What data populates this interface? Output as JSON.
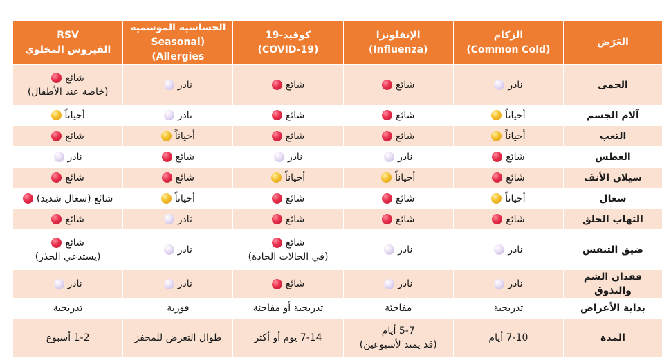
{
  "header": {
    "symptom": "العَرَض",
    "cold": [
      "الزكام",
      "(Common Cold)"
    ],
    "flu": [
      "الإنفلونزا",
      "(Influenza)"
    ],
    "covid": [
      "كوفيد-19",
      "(COVID-19)"
    ],
    "allergy": [
      "الحساسية الموسمية",
      "(Seasonal Allergies)"
    ],
    "rsv": [
      "RSV",
      "الفيروس المخلوي"
    ]
  },
  "rows": [
    {
      "symptom": "الحمى",
      "cells": [
        {
          "dot": "purple",
          "text": "نادر"
        },
        {
          "dot": "red",
          "text": "شائع"
        },
        {
          "dot": "red",
          "text": "شائع"
        },
        {
          "dot": "purple",
          "text": "نادر"
        },
        {
          "dot": "red",
          "text": "شائع",
          "note": "(خاصة عند الأطفال)"
        }
      ]
    },
    {
      "symptom": "آلام الجسم",
      "cells": [
        {
          "dot": "yellow",
          "text": "أحياناً"
        },
        {
          "dot": "red",
          "text": "شائع"
        },
        {
          "dot": "red",
          "text": "شائع"
        },
        {
          "dot": "purple",
          "text": "نادر"
        },
        {
          "dot": "yellow",
          "text": "أحياناً"
        }
      ]
    },
    {
      "symptom": "التعب",
      "cells": [
        {
          "dot": "yellow",
          "text": "أحياناً"
        },
        {
          "dot": "red",
          "text": "شائع"
        },
        {
          "dot": "red",
          "text": "شائع"
        },
        {
          "dot": "yellow",
          "text": "أحياناً"
        },
        {
          "dot": "red",
          "text": "شائع"
        }
      ]
    },
    {
      "symptom": "العطس",
      "cells": [
        {
          "dot": "red",
          "text": "شائع"
        },
        {
          "dot": "purple",
          "text": "نادر"
        },
        {
          "dot": "purple",
          "text": "نادر"
        },
        {
          "dot": "red",
          "text": "شائع"
        },
        {
          "dot": "purple",
          "text": "نادر"
        }
      ]
    },
    {
      "symptom": "سيلان الأنف",
      "cells": [
        {
          "dot": "red",
          "text": "شائع"
        },
        {
          "dot": "yellow",
          "text": "أحياناً"
        },
        {
          "dot": "yellow",
          "text": "أحياناً"
        },
        {
          "dot": "red",
          "text": "شائع"
        },
        {
          "dot": "red",
          "text": "شائع"
        }
      ]
    },
    {
      "symptom": "سعال",
      "cells": [
        {
          "dot": "yellow",
          "text": "أحياناً"
        },
        {
          "dot": "red",
          "text": "شائع"
        },
        {
          "dot": "red",
          "text": "شائع"
        },
        {
          "dot": "yellow",
          "text": "أحياناً"
        },
        {
          "dot": "red",
          "text": "شائع (سعال شديد)"
        }
      ]
    },
    {
      "symptom": "التهاب الحلق",
      "cells": [
        {
          "dot": "red",
          "text": "شائع"
        },
        {
          "dot": "red",
          "text": "شائع"
        },
        {
          "dot": "red",
          "text": "شائع"
        },
        {
          "dot": "purple",
          "text": "نادر"
        },
        {
          "dot": "red",
          "text": "شائع"
        }
      ]
    },
    {
      "symptom": "ضيق التنفس",
      "cells": [
        {
          "dot": "purple",
          "text": "نادر"
        },
        {
          "dot": "purple",
          "text": "نادر"
        },
        {
          "dot": "red",
          "text": "شائع",
          "note": "(في الحالات الحادة)"
        },
        {
          "dot": "purple",
          "text": "نادر"
        },
        {
          "dot": "red",
          "text": "شائع",
          "note": "(يستدعي الحذر)"
        }
      ]
    },
    {
      "symptom": "فقدان الشم والتذوق",
      "cells": [
        {
          "dot": "purple",
          "text": "نادر"
        },
        {
          "dot": "purple",
          "text": "نادر"
        },
        {
          "dot": "red",
          "text": "شائع"
        },
        {
          "dot": "purple",
          "text": "نادر"
        },
        {
          "dot": "purple",
          "text": "نادر"
        }
      ]
    },
    {
      "symptom": "بداية الأعراض",
      "cells": [
        {
          "text": "تدريجية"
        },
        {
          "text": "مفاجئة"
        },
        {
          "text": "تدريجية أو مفاجئة"
        },
        {
          "text": "فورية"
        },
        {
          "text": "تدريجية"
        }
      ]
    },
    {
      "symptom": "المدة",
      "cells": [
        {
          "text": "7-10 أيام"
        },
        {
          "text": "5-7 أيام",
          "note": "(قد يمتد لأسبوعين)"
        },
        {
          "text": "7-14 يوم أو أكثر"
        },
        {
          "text": "طوال التعرض للمحفز"
        },
        {
          "text": "1-2 أسبوع"
        }
      ]
    }
  ]
}
